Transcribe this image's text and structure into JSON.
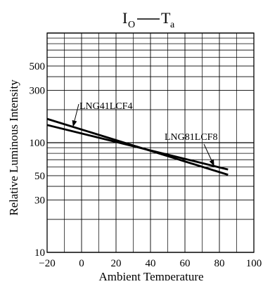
{
  "chart_data": {
    "type": "line",
    "title": {
      "main_1": "I",
      "main_1_sub": "O",
      "main_2": "T",
      "main_2_sub": "a"
    },
    "xlabel": "Ambient Temperature",
    "ylabel": "Relative Luminous Intensity",
    "x_scale": "linear",
    "y_scale": "log",
    "xlim": [
      -20,
      100
    ],
    "ylim": [
      10,
      1000
    ],
    "x_ticks": [
      -20,
      0,
      20,
      40,
      60,
      80,
      100
    ],
    "x_tick_labels": [
      "−20",
      "0",
      "20",
      "40",
      "60",
      "80",
      "100"
    ],
    "y_ticks": [
      10,
      30,
      50,
      100,
      300,
      500
    ],
    "y_tick_labels": [
      "10",
      "30",
      "50",
      "100",
      "300",
      "500"
    ],
    "y_gridlines": [
      10,
      20,
      30,
      40,
      50,
      60,
      70,
      80,
      90,
      100,
      200,
      300,
      400,
      500,
      600,
      700,
      800,
      900,
      1000
    ],
    "grid": true,
    "series": [
      {
        "name": "LNG41LCF4",
        "x": [
          -20,
          85
        ],
        "y": [
          165,
          51
        ]
      },
      {
        "name": "LNG81LCF8",
        "x": [
          -20,
          85
        ],
        "y": [
          145,
          57
        ]
      }
    ],
    "annotations": [
      {
        "text": "LNG41LCF4",
        "series": "LNG41LCF4"
      },
      {
        "text": "LNG81LCF8",
        "series": "LNG81LCF8"
      }
    ],
    "colors": {
      "line": "#000000",
      "grid": "#000000",
      "background": "#ffffff"
    }
  }
}
